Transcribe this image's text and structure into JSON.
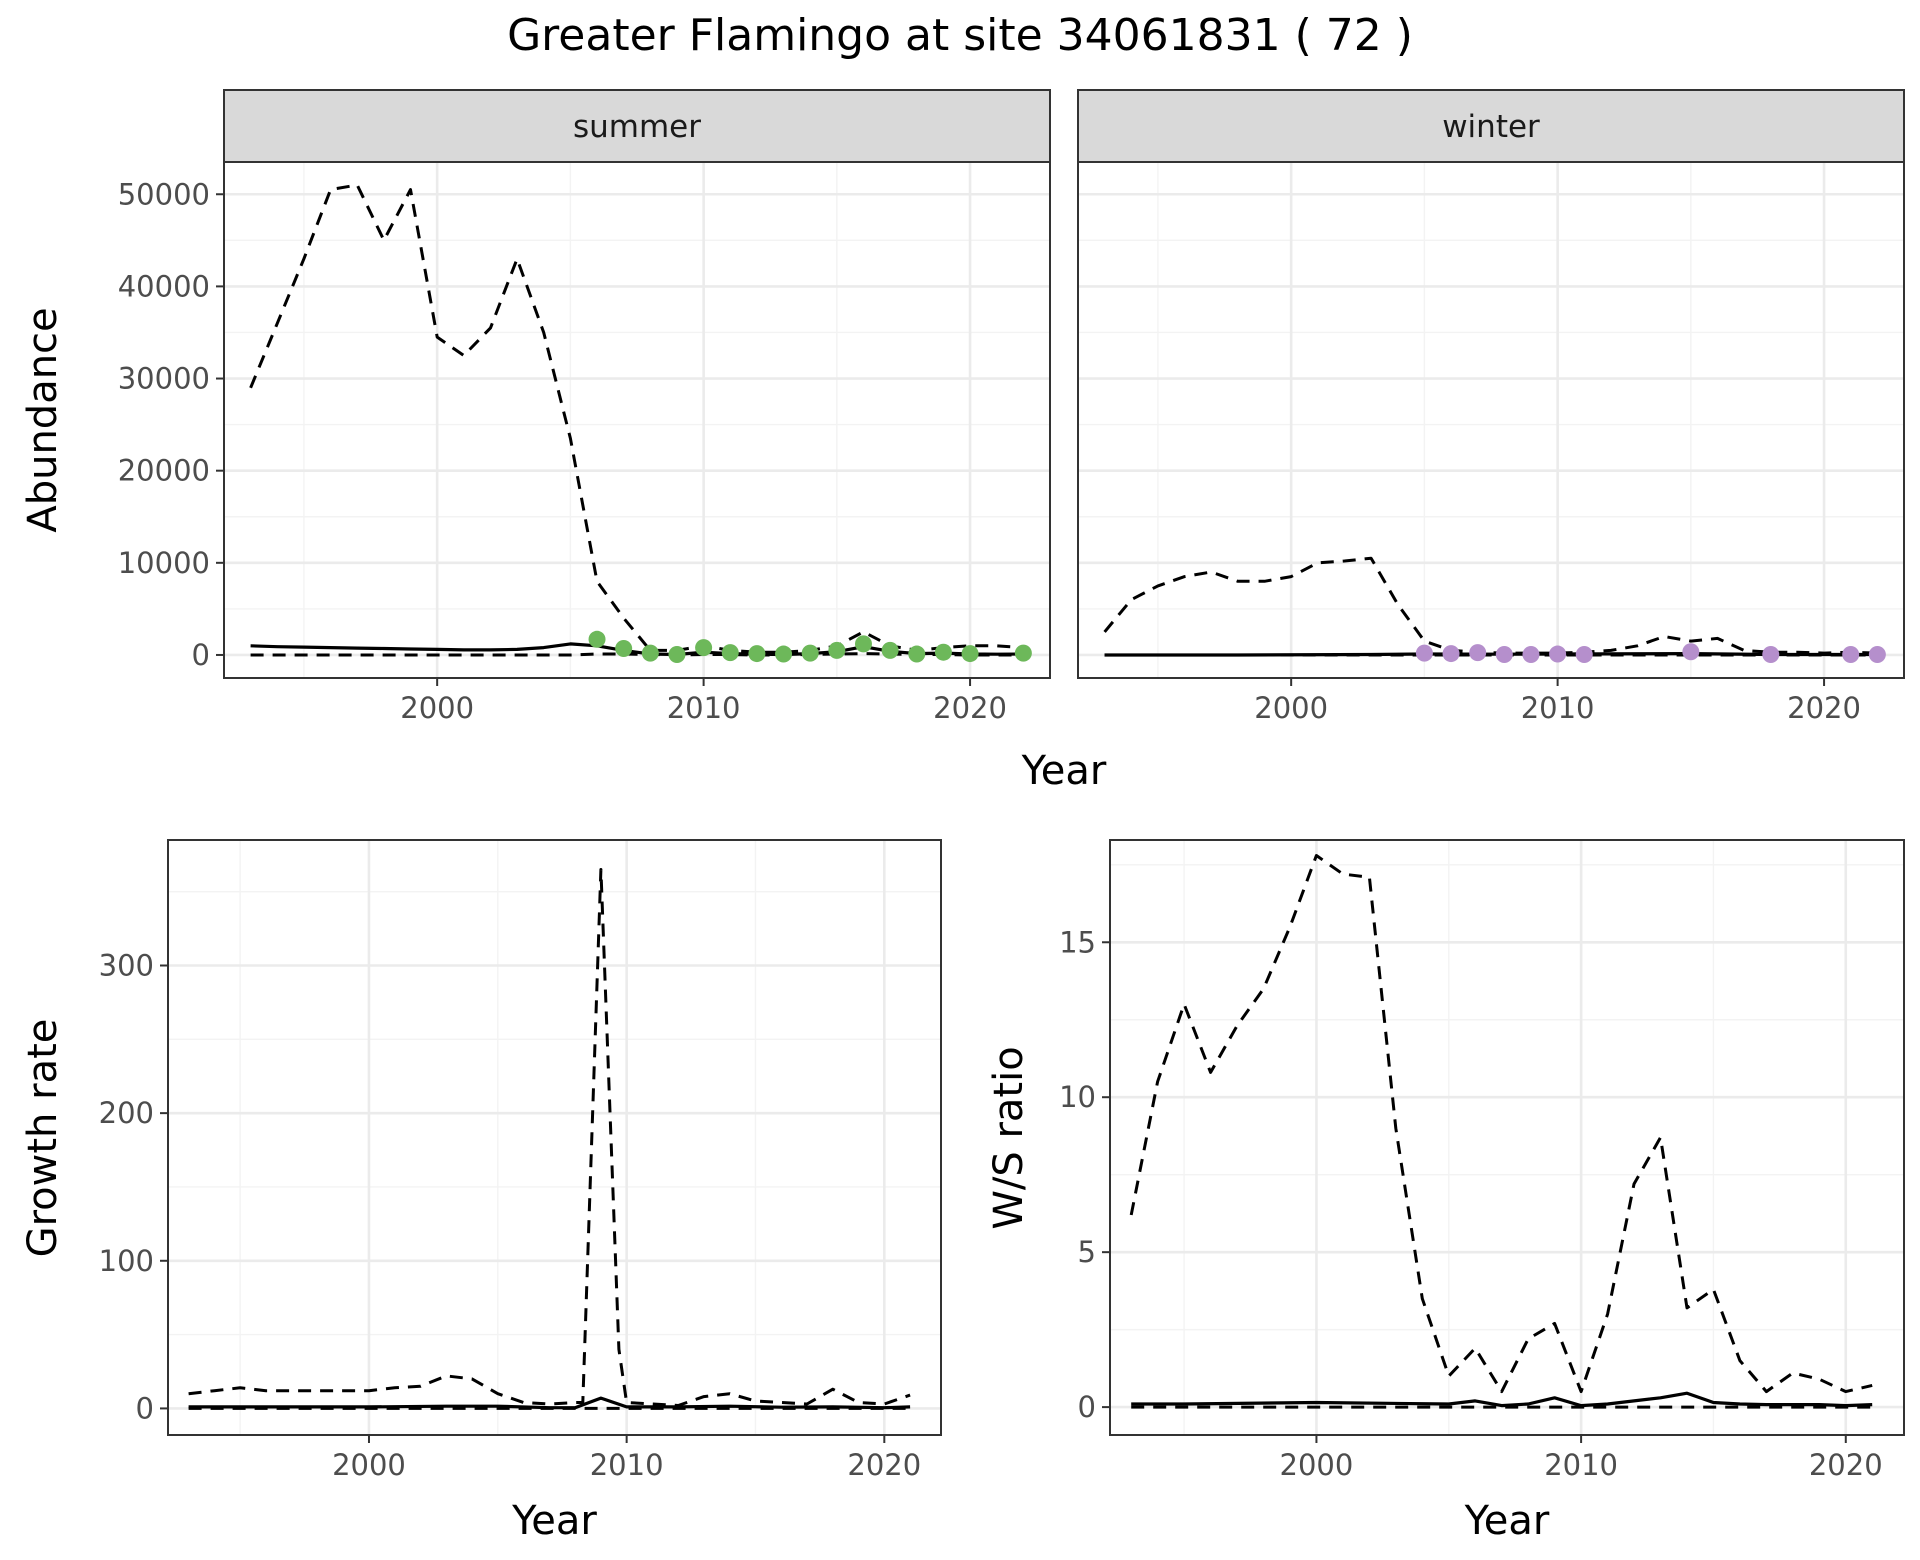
{
  "title": "Greater Flamingo at site 34061831 ( 72 )",
  "colors": {
    "summer_points": "#6db85a",
    "winter_points": "#b58fcc",
    "strip_bg": "#d9d9d9",
    "grid_major": "#ebebeb",
    "grid_minor": "#f3f3f3"
  },
  "chart_data": [
    {
      "type": "line",
      "panel": "abundance",
      "facets": [
        "summer",
        "winter"
      ],
      "xlabel": "Year",
      "ylabel": "Abundance",
      "xlim": [
        1992,
        2023
      ],
      "ylim": [
        -2500,
        53500
      ],
      "xticks": [
        2000,
        2010,
        2020
      ],
      "yticks": [
        0,
        10000,
        20000,
        30000,
        40000,
        50000
      ],
      "legend": "none",
      "grid": true,
      "summer": {
        "upper_x": [
          1993,
          1994,
          1995,
          1996,
          1997,
          1998,
          1999,
          2000,
          2001,
          2002,
          2003,
          2004,
          2005,
          2006,
          2007,
          2008,
          2009,
          2010,
          2011,
          2012,
          2013,
          2014,
          2015,
          2016,
          2017,
          2018,
          2019,
          2020,
          2021,
          2022
        ],
        "upper_y": [
          29000,
          36000,
          43000,
          50500,
          51000,
          45000,
          50500,
          34500,
          32500,
          35500,
          43000,
          35000,
          23500,
          8000,
          4000,
          500,
          500,
          1000,
          500,
          300,
          300,
          500,
          1000,
          2500,
          1000,
          500,
          800,
          1000,
          1000,
          800
        ],
        "mid_x": [
          1993,
          1994,
          1995,
          1996,
          1997,
          1998,
          1999,
          2000,
          2001,
          2002,
          2003,
          2004,
          2005,
          2006,
          2007,
          2008,
          2009,
          2010,
          2011,
          2012,
          2013,
          2014,
          2015,
          2016,
          2017,
          2018,
          2019,
          2020,
          2021,
          2022
        ],
        "mid_y": [
          1000,
          900,
          850,
          800,
          750,
          700,
          650,
          600,
          550,
          550,
          600,
          800,
          1200,
          1000,
          500,
          100,
          50,
          300,
          150,
          80,
          50,
          150,
          350,
          900,
          400,
          150,
          200,
          100,
          80,
          100
        ],
        "lower_x": [
          1993,
          1994,
          1995,
          1996,
          1997,
          1998,
          1999,
          2000,
          2001,
          2002,
          2003,
          2004,
          2005,
          2006,
          2007,
          2008,
          2009,
          2010,
          2011,
          2012,
          2013,
          2014,
          2015,
          2016,
          2017,
          2018,
          2019,
          2020,
          2021,
          2022
        ],
        "lower_y": [
          0,
          0,
          0,
          0,
          0,
          0,
          0,
          0,
          0,
          0,
          0,
          0,
          0,
          100,
          100,
          50,
          0,
          50,
          50,
          0,
          0,
          50,
          100,
          150,
          100,
          50,
          50,
          0,
          0,
          0
        ],
        "points_x": [
          2006,
          2007,
          2008,
          2009,
          2010,
          2011,
          2012,
          2013,
          2014,
          2015,
          2016,
          2017,
          2018,
          2019,
          2020,
          2022
        ],
        "points_y": [
          1700,
          700,
          200,
          50,
          800,
          250,
          150,
          100,
          200,
          500,
          1200,
          500,
          100,
          300,
          150,
          200
        ]
      },
      "winter": {
        "upper_x": [
          1993,
          1994,
          1995,
          1996,
          1997,
          1998,
          1999,
          2000,
          2001,
          2002,
          2003,
          2004,
          2005,
          2006,
          2007,
          2008,
          2009,
          2010,
          2011,
          2012,
          2013,
          2014,
          2015,
          2016,
          2017,
          2018,
          2019,
          2020,
          2021,
          2022
        ],
        "upper_y": [
          2500,
          6000,
          7500,
          8500,
          9000,
          8000,
          8000,
          8500,
          10000,
          10200,
          10500,
          5500,
          1500,
          500,
          300,
          200,
          200,
          200,
          300,
          500,
          1000,
          2000,
          1500,
          1800,
          500,
          300,
          300,
          200,
          300,
          200
        ],
        "mid_x": [
          1993,
          1998,
          2003,
          2005,
          2008,
          2010,
          2015,
          2018,
          2022
        ],
        "mid_y": [
          0,
          0,
          50,
          100,
          80,
          100,
          150,
          50,
          50
        ],
        "lower_x": [
          1993,
          2004,
          2005,
          2010,
          2015,
          2022
        ],
        "lower_y": [
          0,
          0,
          0,
          0,
          0,
          0
        ],
        "points_x": [
          2005,
          2006,
          2007,
          2008,
          2009,
          2010,
          2011,
          2015,
          2018,
          2021,
          2022
        ],
        "points_y": [
          200,
          150,
          250,
          50,
          50,
          100,
          50,
          350,
          50,
          50,
          50
        ]
      }
    },
    {
      "type": "line",
      "panel": "growth",
      "xlabel": "Year",
      "ylabel": "Growth rate",
      "xlim": [
        1992.2,
        2022.2
      ],
      "ylim": [
        -18,
        385
      ],
      "xticks": [
        2000,
        2010,
        2020
      ],
      "yticks": [
        0,
        100,
        200,
        300
      ],
      "legend": "none",
      "grid": true,
      "upper_x": [
        1993,
        1994,
        1995,
        1996,
        1997,
        1998,
        1999,
        2000,
        2001,
        2002,
        2003,
        2004,
        2005,
        2006,
        2007,
        2008,
        2008.3,
        2009,
        2009.7,
        2010,
        2011,
        2012,
        2013,
        2014,
        2015,
        2016,
        2017,
        2018,
        2019,
        2020,
        2021
      ],
      "upper_y": [
        10,
        12,
        14,
        12,
        12,
        12,
        12,
        12,
        14,
        15,
        22,
        20,
        10,
        4,
        3,
        4,
        4,
        365,
        40,
        4,
        3,
        2,
        8,
        10,
        5,
        4,
        3,
        13,
        4,
        3,
        9
      ],
      "mid_x": [
        1993,
        1995,
        2000,
        2003,
        2005,
        2007,
        2008,
        2009,
        2010,
        2012,
        2014,
        2016,
        2018,
        2020,
        2021
      ],
      "mid_y": [
        1,
        1,
        1,
        1.5,
        1.5,
        0.5,
        0.5,
        7,
        1,
        1,
        1.5,
        0.8,
        1,
        0.5,
        1
      ],
      "lower_x": [
        1993,
        2021
      ],
      "lower_y": [
        0,
        0
      ]
    },
    {
      "type": "line",
      "panel": "ratio",
      "xlabel": "Year",
      "ylabel": "W/S ratio",
      "xlim": [
        1992.2,
        2022.2
      ],
      "ylim": [
        -0.9,
        18.3
      ],
      "xticks": [
        2000,
        2010,
        2020
      ],
      "yticks": [
        0,
        5,
        10,
        15
      ],
      "legend": "none",
      "grid": true,
      "upper_x": [
        1993,
        1994,
        1995,
        1996,
        1997,
        1998,
        1999,
        2000,
        2001,
        2002,
        2003,
        2004,
        2005,
        2006,
        2007,
        2008,
        2009,
        2010,
        2011,
        2012,
        2013,
        2014,
        2015,
        2016,
        2017,
        2018,
        2019,
        2020,
        2021
      ],
      "upper_y": [
        6.2,
        10.5,
        13,
        10.8,
        12.3,
        13.5,
        15.5,
        17.8,
        17.2,
        17.1,
        9,
        3.5,
        1,
        1.9,
        0.5,
        2.2,
        2.7,
        0.5,
        3,
        7.2,
        8.7,
        3.2,
        3.8,
        1.5,
        0.5,
        1.1,
        0.9,
        0.5,
        0.7
      ],
      "mid_x": [
        1993,
        1995,
        2000,
        2005,
        2006,
        2007,
        2008,
        2009,
        2010,
        2011,
        2012,
        2013,
        2014,
        2015,
        2016,
        2017,
        2018,
        2019,
        2020,
        2021
      ],
      "mid_y": [
        0.1,
        0.1,
        0.15,
        0.1,
        0.2,
        0.05,
        0.1,
        0.3,
        0.05,
        0.1,
        0.2,
        0.3,
        0.45,
        0.15,
        0.1,
        0.08,
        0.08,
        0.08,
        0.05,
        0.08
      ],
      "lower_x": [
        1993,
        2021
      ],
      "lower_y": [
        0,
        0
      ]
    }
  ]
}
